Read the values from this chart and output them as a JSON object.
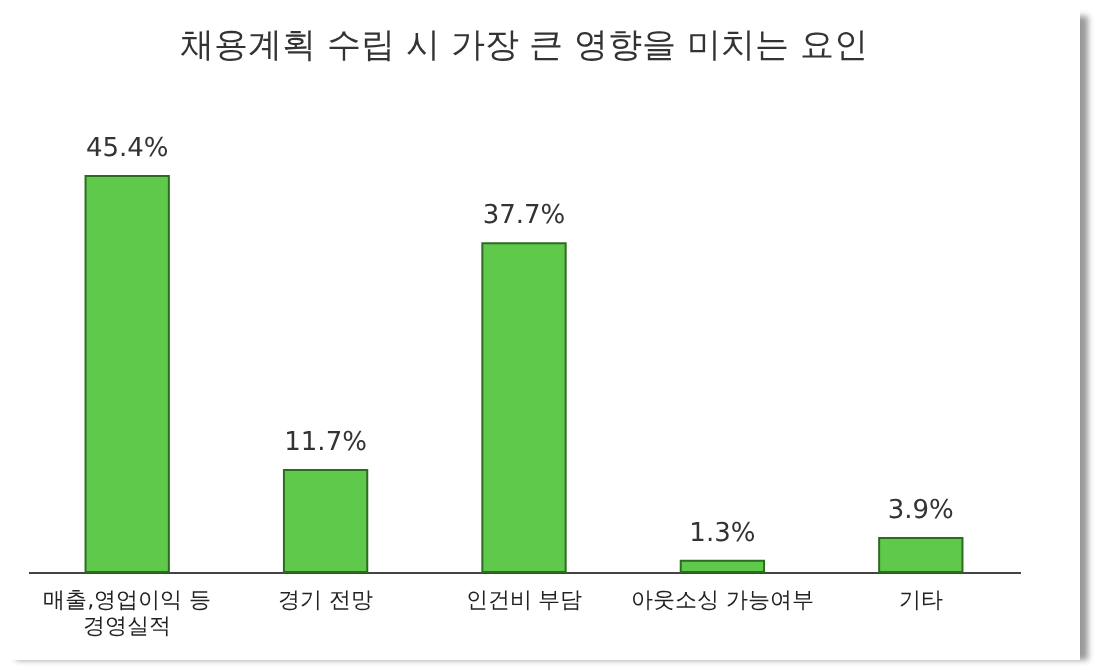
{
  "chart_data": {
    "type": "bar",
    "title": "채용계획 수립 시 가장 큰 영향을 미치는 요인",
    "categories": [
      "매출,영업이익 등 경영실적",
      "경기 전망",
      "인건비 부담",
      "아웃소싱 가능여부",
      "기타"
    ],
    "values": [
      45.4,
      11.7,
      37.7,
      1.3,
      3.9
    ],
    "value_labels": [
      "45.4%",
      "11.7%",
      "37.7%",
      "1.3%",
      "3.9%"
    ],
    "color": "#5ec94a"
  }
}
